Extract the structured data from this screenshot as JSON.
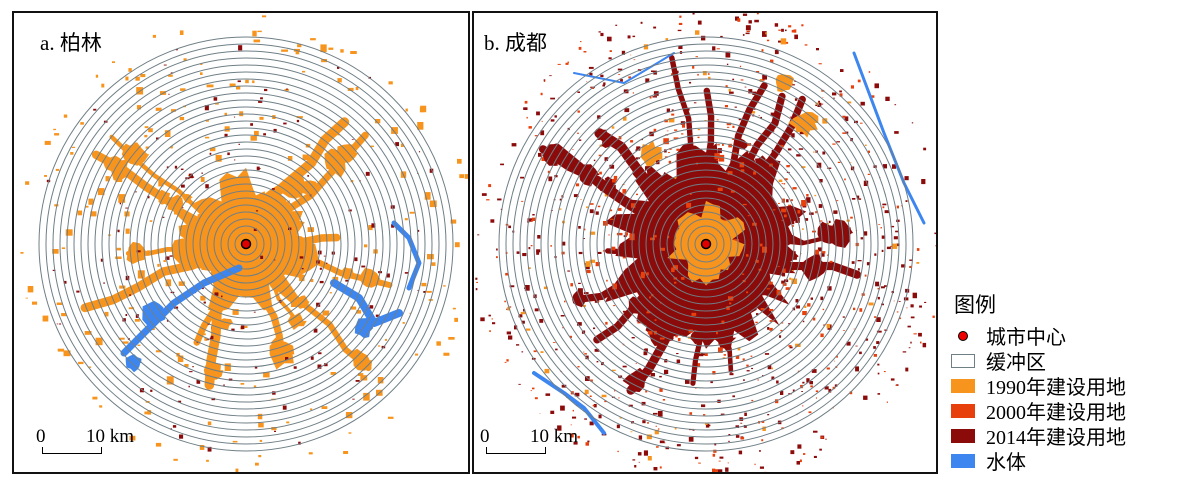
{
  "panels": [
    {
      "id": "a",
      "label": "a. 柏林",
      "scale": {
        "zero": "0",
        "distance": "10 km"
      }
    },
    {
      "id": "b",
      "label": "b. 成都",
      "scale": {
        "zero": "0",
        "distance": "10 km"
      }
    }
  ],
  "legend": {
    "title": "图例",
    "items": [
      {
        "label": "城市中心",
        "symbol": "dot",
        "color": "#e00000"
      },
      {
        "label": "缓冲区",
        "symbol": "box",
        "color": "#6f7f86"
      },
      {
        "label": "1990年建设用地",
        "symbol": "swatch",
        "color": "#f7941d"
      },
      {
        "label": "2000年建设用地",
        "symbol": "swatch",
        "color": "#e8400c"
      },
      {
        "label": "2014年建设用地",
        "symbol": "swatch",
        "color": "#8b0a0a"
      },
      {
        "label": "水体",
        "symbol": "swatch",
        "color": "#3d86f0"
      }
    ]
  },
  "colors": {
    "buffer_ring": "#6f7f86",
    "built_1990": "#f7941d",
    "built_2000": "#e8400c",
    "built_2014": "#8b0a0a",
    "water": "#3d86f0",
    "center": "#e00000"
  }
}
